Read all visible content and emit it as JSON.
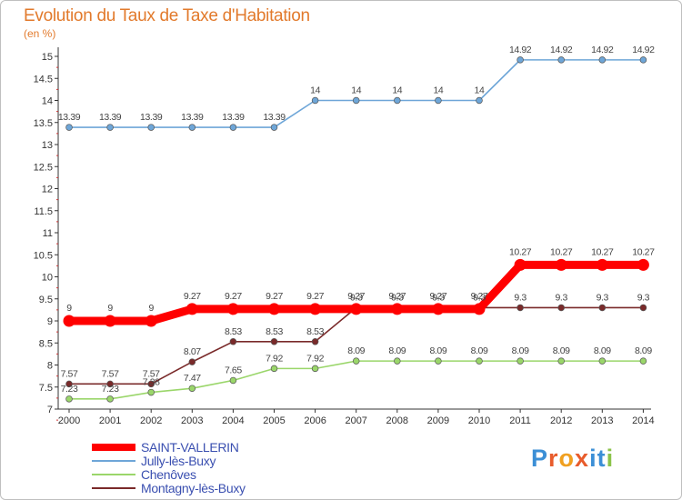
{
  "header": {
    "title": "Evolution du Taux de Taxe d'Habitation",
    "unit": "(en %)"
  },
  "logo": {
    "letters": [
      "P",
      "r",
      "o",
      "x",
      "i",
      "t",
      "i"
    ],
    "colors": [
      "#3c8fd6",
      "#e85c2c",
      "#f0a020",
      "#e85c2c",
      "#3c8fd6",
      "#3c8fd6",
      "#8bc34a"
    ]
  },
  "chart_data": {
    "type": "line",
    "x": [
      "2000",
      "2001",
      "2002",
      "2003",
      "2004",
      "2005",
      "2006",
      "2007",
      "2008",
      "2009",
      "2010",
      "2011",
      "2012",
      "2013",
      "2014"
    ],
    "ylim": [
      7,
      15
    ],
    "yticks": [
      "7",
      "7.5",
      "8",
      "8.5",
      "9",
      "9.5",
      "10",
      "10.5",
      "11",
      "11.5",
      "12",
      "12.5",
      "13",
      "13.5",
      "14",
      "14.5",
      "15"
    ],
    "grid": false,
    "legend_placement": "bottom-left",
    "series": [
      {
        "name": "SAINT-VALLERIN",
        "color": "#ff0000",
        "values": [
          9,
          9,
          9,
          9.27,
          9.27,
          9.27,
          9.27,
          9.27,
          9.27,
          9.27,
          9.27,
          10.27,
          10.27,
          10.27,
          10.27
        ],
        "labels": [
          "9",
          "9",
          "9",
          "9.27",
          "9.27",
          "9.27",
          "9.27",
          "9.27",
          "9.27",
          "9.27",
          "9.27",
          "10.27",
          "10.27",
          "10.27",
          "10.27"
        ]
      },
      {
        "name": "Jully-lès-Buxy",
        "color": "#6ea6d8",
        "values": [
          13.39,
          13.39,
          13.39,
          13.39,
          13.39,
          13.39,
          14,
          14,
          14,
          14,
          14,
          14.92,
          14.92,
          14.92,
          14.92
        ],
        "labels": [
          "13.39",
          "13.39",
          "13.39",
          "13.39",
          "13.39",
          "13.39",
          "14",
          "14",
          "14",
          "14",
          "14",
          "14.92",
          "14.92",
          "14.92",
          "14.92"
        ]
      },
      {
        "name": "Chenôves",
        "color": "#9ad66a",
        "values": [
          7.23,
          7.23,
          7.38,
          7.47,
          7.65,
          7.92,
          7.92,
          8.09,
          8.09,
          8.09,
          8.09,
          8.09,
          8.09,
          8.09,
          8.09
        ],
        "labels": [
          "7.23",
          "7.23",
          "7.38",
          "7.47",
          "7.65",
          "7.92",
          "7.92",
          "8.09",
          "8.09",
          "8.09",
          "8.09",
          "8.09",
          "8.09",
          "8.09",
          "8.09"
        ]
      },
      {
        "name": "Montagny-lès-Buxy",
        "color": "#7a2a2a",
        "values": [
          7.57,
          7.57,
          7.57,
          8.07,
          8.53,
          8.53,
          8.53,
          9.3,
          9.3,
          9.3,
          9.3,
          9.3,
          9.3,
          9.3,
          9.3
        ],
        "labels": [
          "7.57",
          "7.57",
          "7.57",
          "8.07",
          "8.53",
          "8.53",
          "8.53",
          "9.3",
          "9.3",
          "9.3",
          "9.3",
          "9.3",
          "9.3",
          "9.3",
          "9.3"
        ]
      }
    ]
  }
}
